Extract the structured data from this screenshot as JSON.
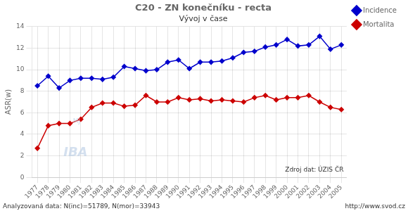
{
  "chart_data": {
    "type": "line",
    "title": "C20 - ZN konečníku - recta",
    "subtitle": "Vývoj v čase",
    "y_label": "ASR(w)",
    "annotations": [
      "Zdroj dat: ÚZIS ČR",
      "IBA",
      "MJ",
      "Analyzovaná data: N(inc)=51789, N(mor)=33943",
      "http://www.svod.cz"
    ],
    "x": [
      1977,
      1978,
      1979,
      1980,
      1981,
      1982,
      1983,
      1984,
      1985,
      1986,
      1987,
      1988,
      1989,
      1990,
      1991,
      1992,
      1993,
      1994,
      1995,
      1996,
      1997,
      1998,
      1999,
      2000,
      2001,
      2002,
      2003,
      2004,
      2005
    ],
    "series": [
      {
        "name": "Incidence",
        "color": "#0000cc",
        "marker": "diamond",
        "values": [
          8.5,
          9.4,
          8.3,
          9.0,
          9.2,
          9.2,
          9.1,
          9.3,
          10.3,
          10.1,
          9.9,
          10.0,
          10.7,
          10.9,
          10.1,
          10.7,
          10.7,
          10.8,
          11.1,
          11.6,
          11.7,
          12.1,
          12.3,
          12.8,
          12.2,
          12.3,
          13.1,
          11.9,
          12.3
        ]
      },
      {
        "name": "Mortalita",
        "color": "#cc0000",
        "marker": "diamond",
        "values": [
          2.7,
          4.8,
          5.0,
          5.0,
          5.4,
          6.5,
          6.9,
          6.9,
          6.6,
          6.7,
          7.6,
          7.0,
          7.0,
          7.4,
          7.2,
          7.3,
          7.1,
          7.2,
          7.1,
          7.0,
          7.4,
          7.6,
          7.2,
          7.4,
          7.4,
          7.6,
          7.0,
          6.5,
          6.3
        ]
      }
    ],
    "xlim": [
      1976.5,
      2005.5
    ],
    "xticks": [
      1977,
      1978,
      1979,
      1980,
      1981,
      1982,
      1983,
      1984,
      1985,
      1986,
      1987,
      1988,
      1989,
      1990,
      1991,
      1992,
      1993,
      1994,
      1995,
      1996,
      1997,
      1998,
      1999,
      2000,
      2001,
      2002,
      2003,
      2004,
      2005
    ],
    "ylim": [
      0,
      14
    ],
    "yticks": [
      0,
      2,
      4,
      6,
      8,
      10,
      12,
      14
    ],
    "grid": true,
    "legend": "right"
  }
}
